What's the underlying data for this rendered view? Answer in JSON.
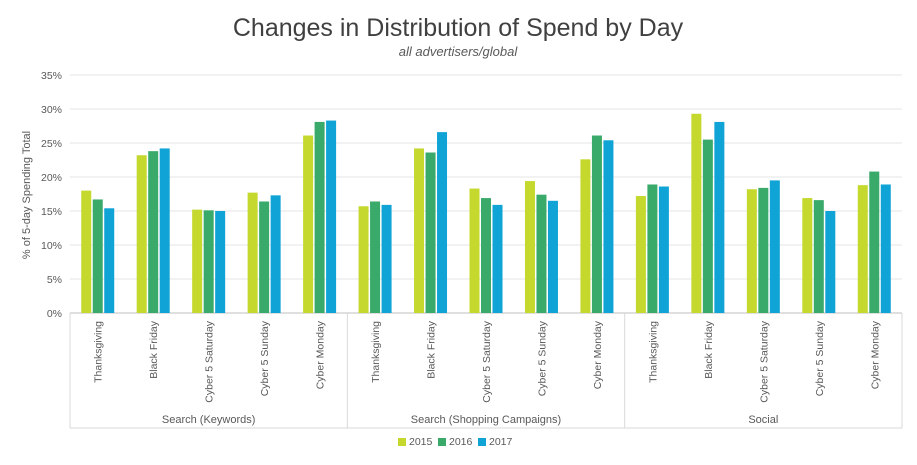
{
  "chart_data": {
    "type": "bar",
    "title": "Changes in Distribution of Spend by Day",
    "subtitle": "all advertisers/global",
    "ylabel": "% of 5-day Spending Total",
    "ylim": [
      0,
      35
    ],
    "yticks": [
      "0%",
      "5%",
      "10%",
      "15%",
      "20%",
      "25%",
      "30%",
      "35%"
    ],
    "groups": [
      {
        "name": "Search (Keywords)",
        "categories": [
          "Thanksgiving",
          "Black Friday",
          "Cyber 5 Saturday",
          "Cyber 5 Sunday",
          "Cyber Monday"
        ],
        "values": [
          [
            18.0,
            16.7,
            15.4
          ],
          [
            23.2,
            23.8,
            24.2
          ],
          [
            15.2,
            15.1,
            15.0
          ],
          [
            17.7,
            16.4,
            17.3
          ],
          [
            26.1,
            28.1,
            28.3
          ]
        ]
      },
      {
        "name": "Search (Shopping Campaigns)",
        "categories": [
          "Thanksgiving",
          "Black Friday",
          "Cyber 5 Saturday",
          "Cyber 5 Sunday",
          "Cyber Monday"
        ],
        "values": [
          [
            15.7,
            16.4,
            15.9
          ],
          [
            24.2,
            23.6,
            26.6
          ],
          [
            18.3,
            16.9,
            15.9
          ],
          [
            19.4,
            17.4,
            16.5
          ],
          [
            22.6,
            26.1,
            25.4
          ]
        ]
      },
      {
        "name": "Social",
        "categories": [
          "Thanksgiving",
          "Black Friday",
          "Cyber 5 Saturday",
          "Cyber 5 Sunday",
          "Cyber Monday"
        ],
        "values": [
          [
            17.2,
            18.9,
            18.6
          ],
          [
            29.3,
            25.5,
            28.1
          ],
          [
            18.2,
            18.4,
            19.5
          ],
          [
            16.9,
            16.6,
            15.0
          ],
          [
            18.8,
            20.8,
            18.9
          ]
        ]
      }
    ],
    "series": [
      {
        "name": "2015",
        "color": "#c4d82e"
      },
      {
        "name": "2016",
        "color": "#3aaa6b"
      },
      {
        "name": "2017",
        "color": "#0fa3d6"
      }
    ],
    "legend_position": "bottom-center",
    "grid": true
  }
}
